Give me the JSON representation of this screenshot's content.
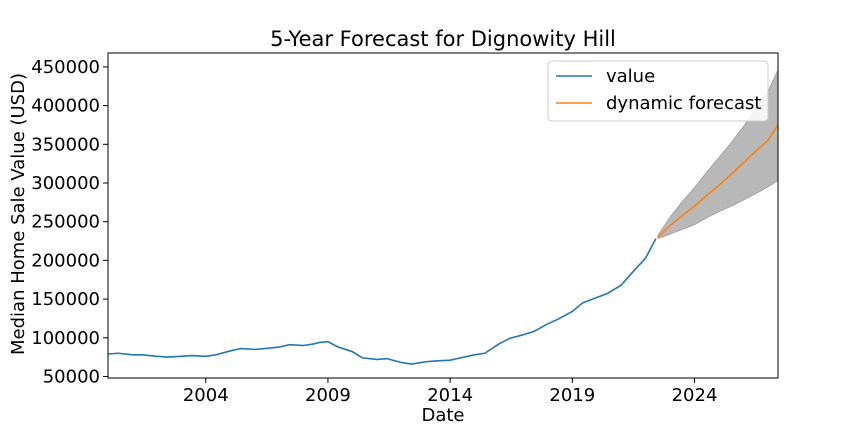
{
  "chart_data": {
    "type": "line",
    "title": "5-Year Forecast for Dignowity Hill",
    "xlabel": "Date",
    "ylabel": "Median Home Sale Value (USD)",
    "xlim": [
      "2000-01",
      "2027-06"
    ],
    "ylim": [
      48000,
      468000
    ],
    "x_ticks": [
      "2004",
      "2009",
      "2014",
      "2019",
      "2024"
    ],
    "y_ticks": [
      "50000",
      "100000",
      "150000",
      "200000",
      "250000",
      "300000",
      "350000",
      "400000",
      "450000"
    ],
    "legend": {
      "placement": "upper right",
      "entries": [
        "value",
        "dynamic forecast"
      ]
    },
    "colors": {
      "value": "#1f77b4",
      "dynamic forecast": "#ff7f0e",
      "confidence_band": "#b8b8b8"
    },
    "series": [
      {
        "name": "value",
        "x": [
          "2000-01",
          "2000-06",
          "2001-01",
          "2001-06",
          "2002-01",
          "2002-06",
          "2003-01",
          "2003-06",
          "2004-01",
          "2004-06",
          "2005-01",
          "2005-06",
          "2006-01",
          "2006-06",
          "2007-01",
          "2007-06",
          "2008-01",
          "2008-06",
          "2008-09",
          "2009-01",
          "2009-06",
          "2010-01",
          "2010-06",
          "2011-01",
          "2011-06",
          "2012-01",
          "2012-06",
          "2013-01",
          "2013-06",
          "2014-01",
          "2014-06",
          "2015-01",
          "2015-06",
          "2016-01",
          "2016-06",
          "2017-01",
          "2017-06",
          "2018-01",
          "2018-06",
          "2019-01",
          "2019-06",
          "2020-01",
          "2020-06",
          "2021-01",
          "2021-06",
          "2022-01",
          "2022-06"
        ],
        "values": [
          79000,
          80000,
          78000,
          78000,
          76000,
          75000,
          76000,
          77000,
          76000,
          78000,
          83000,
          86000,
          85000,
          86000,
          88000,
          91000,
          90000,
          92000,
          94000,
          95000,
          88000,
          82000,
          74000,
          72000,
          73000,
          68000,
          66000,
          69000,
          70000,
          71000,
          74000,
          78000,
          80000,
          92000,
          99000,
          104000,
          108000,
          118000,
          124000,
          134000,
          145000,
          152000,
          157000,
          168000,
          183000,
          203000,
          228000
        ]
      },
      {
        "name": "dynamic forecast",
        "x": [
          "2022-07",
          "2023-01",
          "2023-07",
          "2024-01",
          "2024-07",
          "2025-01",
          "2025-07",
          "2026-01",
          "2026-07",
          "2027-01",
          "2027-06"
        ],
        "values": [
          230000,
          245000,
          258000,
          270000,
          284000,
          297000,
          311000,
          326000,
          341000,
          355000,
          375000
        ],
        "lower": [
          228000,
          234000,
          240000,
          246000,
          255000,
          263000,
          270000,
          278000,
          286000,
          295000,
          303000
        ],
        "upper": [
          232000,
          256000,
          276000,
          294000,
          314000,
          333000,
          352000,
          373000,
          396000,
          418000,
          446000
        ]
      }
    ]
  }
}
